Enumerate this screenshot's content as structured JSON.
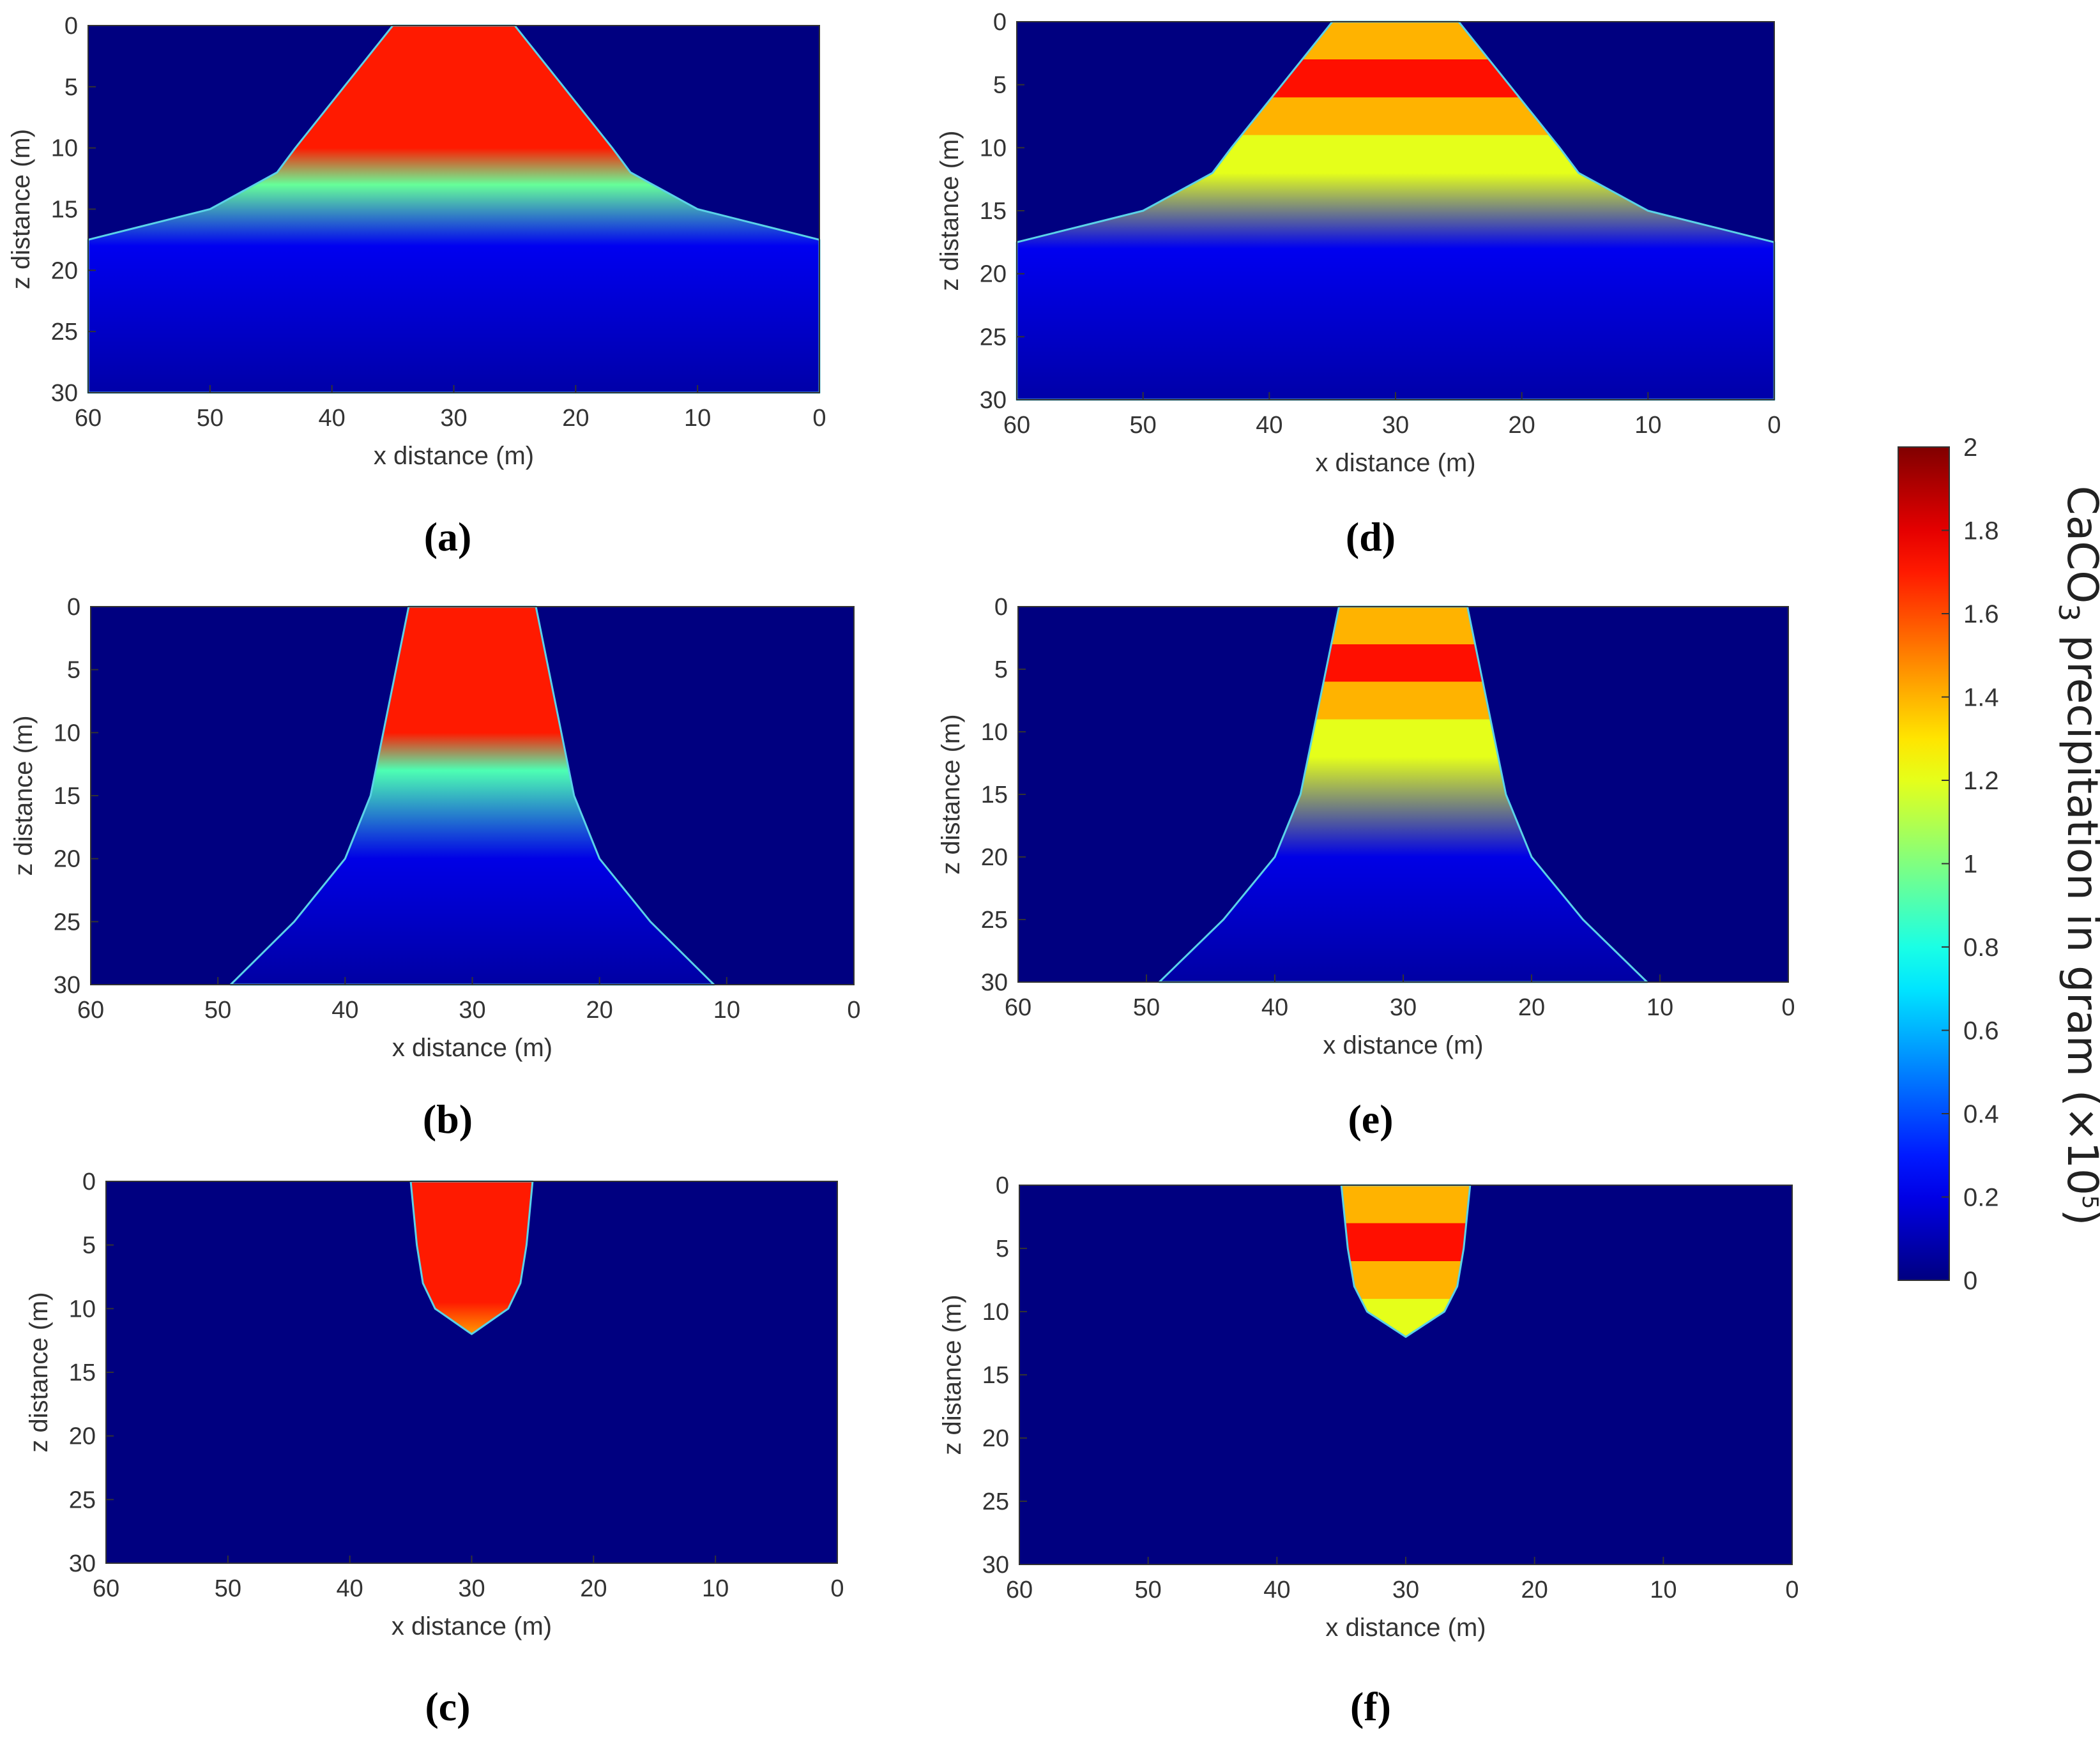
{
  "colorbar": {
    "label_main": "CaCO",
    "label_sub": "3",
    "label_rest": " precipitation in gram (",
    "label_times": "×10",
    "label_exp": "5",
    "label_close": ")",
    "ticks": [
      "0",
      "0.2",
      "0.4",
      "0.6",
      "0.8",
      "1",
      "1.2",
      "1.4",
      "1.6",
      "1.8",
      "2"
    ],
    "colormap": "jet",
    "range": [
      0,
      2
    ]
  },
  "captions": {
    "a": "(a)",
    "b": "(b)",
    "c": "(c)",
    "d": "(d)",
    "e": "(e)",
    "f": "(f)"
  },
  "chart_data": [
    {
      "type": "heatmap",
      "panel": "a",
      "title": "",
      "xlabel": "x distance (m)",
      "ylabel": "z distance (m)",
      "xlim": [
        60,
        0
      ],
      "ylim": [
        0,
        30
      ],
      "xticks": [
        "60",
        "50",
        "40",
        "30",
        "20",
        "10",
        "0"
      ],
      "yticks": [
        "0",
        "5",
        "10",
        "15",
        "20",
        "25",
        "30"
      ],
      "background_value": 0.0,
      "plume": {
        "profile_depths": [
          0,
          5,
          10,
          12,
          15,
          17.5,
          30
        ],
        "left_edge_x": [
          35,
          39,
          43,
          44.5,
          50,
          60,
          60
        ],
        "right_edge_x": [
          25,
          21,
          17,
          15.5,
          10,
          0,
          0
        ],
        "value_bands": [
          {
            "from_z": 0,
            "to_z": 10,
            "value": 1.7
          },
          {
            "from_z": 10,
            "to_z": 13,
            "value": 1.7,
            "to_value": 0.95
          },
          {
            "from_z": 13,
            "to_z": 18,
            "value": 0.95,
            "to_value": 0.22
          },
          {
            "from_z": 18,
            "to_z": 30,
            "value": 0.22,
            "to_value": 0.08
          }
        ]
      }
    },
    {
      "type": "heatmap",
      "panel": "b",
      "title": "",
      "xlabel": "x distance (m)",
      "ylabel": "z distance (m)",
      "xlim": [
        60,
        0
      ],
      "ylim": [
        0,
        30
      ],
      "xticks": [
        "60",
        "50",
        "40",
        "30",
        "20",
        "10",
        "0"
      ],
      "yticks": [
        "0",
        "5",
        "10",
        "15",
        "20",
        "25",
        "30"
      ],
      "background_value": 0.0,
      "plume": {
        "profile_depths": [
          0,
          5,
          10,
          15,
          20,
          25,
          30
        ],
        "left_edge_x": [
          35,
          36,
          37,
          38,
          40,
          44,
          49
        ],
        "right_edge_x": [
          25,
          24,
          23,
          22,
          20,
          16,
          11
        ],
        "value_bands": [
          {
            "from_z": 0,
            "to_z": 10,
            "value": 1.7
          },
          {
            "from_z": 10,
            "to_z": 13,
            "value": 1.7,
            "to_value": 0.9
          },
          {
            "from_z": 13,
            "to_z": 20,
            "value": 0.9,
            "to_value": 0.2
          },
          {
            "from_z": 20,
            "to_z": 30,
            "value": 0.2,
            "to_value": 0.07
          }
        ]
      }
    },
    {
      "type": "heatmap",
      "panel": "c",
      "title": "",
      "xlabel": "x distance (m)",
      "ylabel": "z distance (m)",
      "xlim": [
        60,
        0
      ],
      "ylim": [
        0,
        30
      ],
      "xticks": [
        "60",
        "50",
        "40",
        "30",
        "20",
        "10",
        "0"
      ],
      "yticks": [
        "0",
        "5",
        "10",
        "15",
        "20",
        "25",
        "30"
      ],
      "background_value": 0.0,
      "plume": {
        "profile_depths": [
          0,
          5,
          8,
          10,
          12
        ],
        "left_edge_x": [
          35,
          34.5,
          34,
          33,
          30
        ],
        "right_edge_x": [
          25,
          25.5,
          26,
          27,
          30
        ],
        "value_bands": [
          {
            "from_z": 0,
            "to_z": 9.5,
            "value": 1.7
          },
          {
            "from_z": 9.5,
            "to_z": 12,
            "value": 1.7,
            "to_value": 1.45
          }
        ]
      }
    },
    {
      "type": "heatmap",
      "panel": "d",
      "title": "",
      "xlabel": "x distance (m)",
      "ylabel": "z distance (m)",
      "xlim": [
        60,
        0
      ],
      "ylim": [
        0,
        30
      ],
      "xticks": [
        "60",
        "50",
        "40",
        "30",
        "20",
        "10",
        "0"
      ],
      "yticks": [
        "0",
        "5",
        "10",
        "15",
        "20",
        "25",
        "30"
      ],
      "background_value": 0.0,
      "plume": {
        "profile_depths": [
          0,
          5,
          10,
          12,
          15,
          17.5,
          30
        ],
        "left_edge_x": [
          35,
          39,
          43,
          44.5,
          50,
          60,
          60
        ],
        "right_edge_x": [
          25,
          21,
          17,
          15.5,
          10,
          0,
          0
        ],
        "value_bands": [
          {
            "from_z": 0,
            "to_z": 3,
            "value": 1.4
          },
          {
            "from_z": 3,
            "to_z": 6,
            "value": 1.72
          },
          {
            "from_z": 6,
            "to_z": 9,
            "value": 1.4
          },
          {
            "from_z": 9,
            "to_z": 12,
            "value": 1.2
          },
          {
            "from_z": 12,
            "to_z": 18,
            "value": 1.2,
            "to_value": 0.22
          },
          {
            "from_z": 18,
            "to_z": 30,
            "value": 0.22,
            "to_value": 0.08
          }
        ]
      }
    },
    {
      "type": "heatmap",
      "panel": "e",
      "title": "",
      "xlabel": "x distance (m)",
      "ylabel": "z distance (m)",
      "xlim": [
        60,
        0
      ],
      "ylim": [
        0,
        30
      ],
      "xticks": [
        "60",
        "50",
        "40",
        "30",
        "20",
        "10",
        "0"
      ],
      "yticks": [
        "0",
        "5",
        "10",
        "15",
        "20",
        "25",
        "30"
      ],
      "background_value": 0.0,
      "plume": {
        "profile_depths": [
          0,
          5,
          10,
          15,
          20,
          25,
          30
        ],
        "left_edge_x": [
          35,
          36,
          37,
          38,
          40,
          44,
          49
        ],
        "right_edge_x": [
          25,
          24,
          23,
          22,
          20,
          16,
          11
        ],
        "value_bands": [
          {
            "from_z": 0,
            "to_z": 3,
            "value": 1.4
          },
          {
            "from_z": 3,
            "to_z": 6,
            "value": 1.72
          },
          {
            "from_z": 6,
            "to_z": 9,
            "value": 1.4
          },
          {
            "from_z": 9,
            "to_z": 12,
            "value": 1.2
          },
          {
            "from_z": 12,
            "to_z": 20,
            "value": 1.2,
            "to_value": 0.2
          },
          {
            "from_z": 20,
            "to_z": 30,
            "value": 0.2,
            "to_value": 0.07
          }
        ]
      }
    },
    {
      "type": "heatmap",
      "panel": "f",
      "title": "",
      "xlabel": "x distance (m)",
      "ylabel": "z distance (m)",
      "xlim": [
        60,
        0
      ],
      "ylim": [
        0,
        30
      ],
      "xticks": [
        "60",
        "50",
        "40",
        "30",
        "20",
        "10",
        "0"
      ],
      "yticks": [
        "0",
        "5",
        "10",
        "15",
        "20",
        "25",
        "30"
      ],
      "background_value": 0.0,
      "plume": {
        "profile_depths": [
          0,
          5,
          8,
          10,
          12
        ],
        "left_edge_x": [
          35,
          34.5,
          34,
          33,
          30
        ],
        "right_edge_x": [
          25,
          25.5,
          26,
          27,
          30
        ],
        "value_bands": [
          {
            "from_z": 0,
            "to_z": 3,
            "value": 1.4
          },
          {
            "from_z": 3,
            "to_z": 6,
            "value": 1.72
          },
          {
            "from_z": 6,
            "to_z": 9,
            "value": 1.4
          },
          {
            "from_z": 9,
            "to_z": 12,
            "value": 1.2
          }
        ]
      }
    }
  ]
}
